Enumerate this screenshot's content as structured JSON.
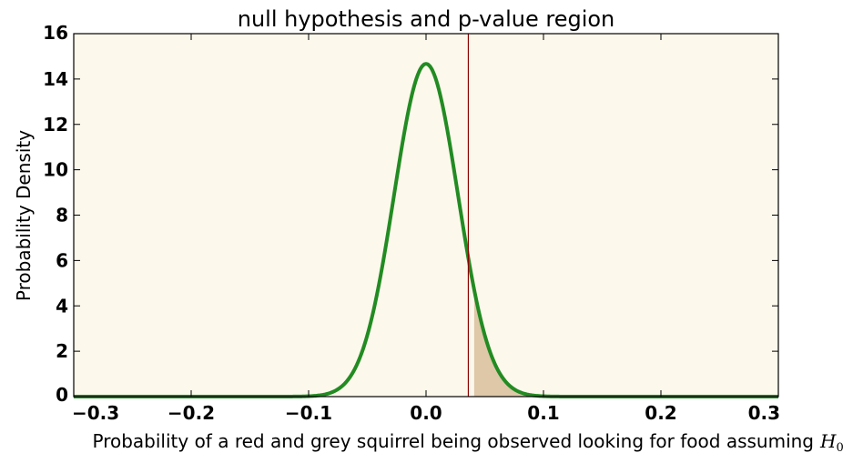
{
  "chart_data": {
    "type": "line",
    "title": "null hypothesis and p-value region",
    "xlabel": "Probability of a red and grey squirrel being observed looking for food assuming",
    "xlabel_math": "H",
    "xlabel_math_sub": "0",
    "ylabel": "Probability Density",
    "xlim": [
      -0.3,
      0.3
    ],
    "ylim": [
      0,
      16
    ],
    "xticks": [
      -0.3,
      -0.2,
      -0.1,
      0.0,
      0.1,
      0.2,
      0.3
    ],
    "xtick_labels": [
      "−0.3",
      "−0.2",
      "−0.1",
      "0.0",
      "0.1",
      "0.2",
      "0.3"
    ],
    "yticks": [
      0,
      2,
      4,
      6,
      8,
      10,
      12,
      14,
      16
    ],
    "ytick_labels": [
      "0",
      "2",
      "4",
      "6",
      "8",
      "10",
      "12",
      "14",
      "16"
    ],
    "grid": false,
    "series": [
      {
        "type": "normal_pdf",
        "mean": 0.0,
        "sd": 0.0272,
        "peak": 14.67,
        "color": "#228b22"
      }
    ],
    "shaded_region": {
      "x_start": 0.041,
      "x_end": 0.3,
      "color": "#dec8a8"
    },
    "vline": {
      "x": 0.036,
      "color": "#8b0000"
    },
    "plot_background": "#fdf8ec"
  }
}
